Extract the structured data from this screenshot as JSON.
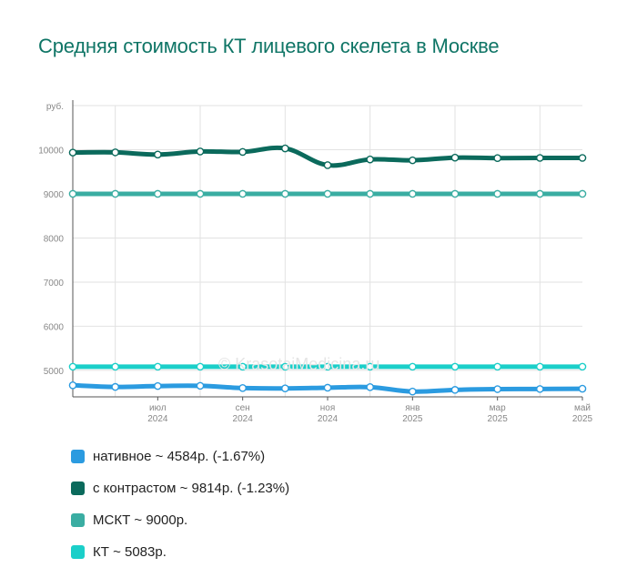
{
  "title": "Средняя стоимость КТ лицевого скелета в Москве",
  "watermark": "© KrasotaiMedicina.ru",
  "colors": {
    "grid": "#e2e2e2",
    "axis": "#555555",
    "tick_text": "#888888",
    "title": "#0f7566"
  },
  "chart_data": {
    "type": "line",
    "title": "Средняя стоимость КТ лицевого скелета в Москве",
    "ylabel": "руб.",
    "ylim": [
      4400,
      11000
    ],
    "y_ticks": [
      5000,
      6000,
      7000,
      8000,
      9000,
      10000
    ],
    "x": [
      "2024-05",
      "2024-06",
      "2024-07",
      "2024-08",
      "2024-09",
      "2024-10",
      "2024-11",
      "2024-12",
      "2025-01",
      "2025-02",
      "2025-03",
      "2025-04",
      "2025-05"
    ],
    "x_tick_labels": [
      {
        "month": "июл",
        "year": "2024"
      },
      {
        "month": "сен",
        "year": "2024"
      },
      {
        "month": "ноя",
        "year": "2024"
      },
      {
        "month": "янв",
        "year": "2025"
      },
      {
        "month": "мар",
        "year": "2025"
      },
      {
        "month": "май",
        "year": "2025"
      }
    ],
    "grid": true,
    "legend_position": "bottom",
    "series": [
      {
        "name": "нативное",
        "legend": "нативное ~ 4584р. (-1.67%)",
        "color": "#2b9be0",
        "values": [
          4662,
          4625,
          4645,
          4650,
          4600,
          4592,
          4607,
          4620,
          4520,
          4558,
          4575,
          4578,
          4584
        ]
      },
      {
        "name": "с контрастом",
        "legend": "с контрастом ~ 9814р. (-1.23%)",
        "color": "#0b6a5c",
        "values": [
          9935,
          9940,
          9890,
          9960,
          9950,
          10030,
          9650,
          9780,
          9760,
          9820,
          9810,
          9814,
          9814
        ]
      },
      {
        "name": "МСКТ",
        "legend": "МСКТ ~ 9000р.",
        "color": "#3aada2",
        "values": [
          9000,
          9000,
          9000,
          9000,
          9000,
          9000,
          9000,
          9000,
          9000,
          9000,
          9000,
          9000,
          9000
        ]
      },
      {
        "name": "КТ",
        "legend": "КТ ~ 5083р.",
        "color": "#1bcfc9",
        "values": [
          5083,
          5083,
          5083,
          5083,
          5083,
          5083,
          5083,
          5083,
          5083,
          5083,
          5083,
          5083,
          5083
        ]
      }
    ]
  }
}
